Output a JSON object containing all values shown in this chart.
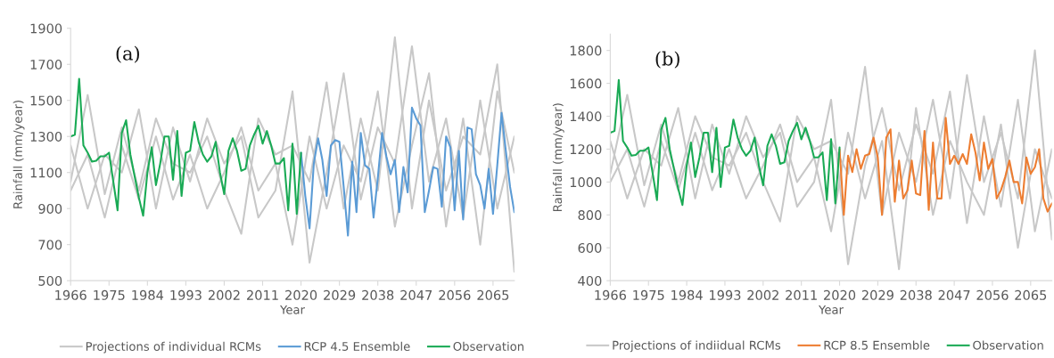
{
  "chart_data": [
    {
      "type": "line",
      "annotations": [
        "(a)"
      ],
      "xlabel": "Year",
      "ylabel": "Rainfall (mm/year)",
      "xlim": [
        1966,
        2070
      ],
      "xticks": [
        1966,
        1975,
        1984,
        1993,
        2002,
        2011,
        2020,
        2029,
        2038,
        2047,
        2056,
        2065
      ],
      "ylim": [
        500,
        1900
      ],
      "yticks": [
        500,
        700,
        900,
        1100,
        1300,
        1500,
        1700,
        1900
      ],
      "grid": false,
      "legend": "bottom",
      "series": [
        {
          "name": "Projections of individual RCMs",
          "color": "#c8c8c8",
          "x": [
            1966,
            1970,
            1974,
            1978,
            1982,
            1986,
            1990,
            1994,
            1998,
            2002,
            2006,
            2010,
            2014,
            2018,
            2022,
            2026,
            2030,
            2034,
            2038,
            2042,
            2046,
            2050,
            2054,
            2058,
            2062,
            2066,
            2070
          ],
          "values": [
            1050,
            1530,
            980,
            1350,
            1000,
            1400,
            1150,
            1100,
            1300,
            1000,
            760,
            1400,
            1200,
            1250,
            1050,
            1600,
            900,
            1400,
            1000,
            1850,
            900,
            1500,
            1000,
            1300,
            1200,
            1700,
            550
          ]
        },
        {
          "color": "#c8c8c8",
          "x": [
            1966,
            1970,
            1974,
            1978,
            1982,
            1986,
            1990,
            1994,
            1998,
            2002,
            2006,
            2010,
            2014,
            2018,
            2022,
            2026,
            2030,
            2034,
            2038,
            2042,
            2046,
            2050,
            2054,
            2058,
            2062,
            2066,
            2070
          ],
          "values": [
            1250,
            900,
            1200,
            1100,
            1450,
            900,
            1350,
            1050,
            1400,
            1150,
            1300,
            850,
            1000,
            1550,
            600,
            1100,
            1650,
            950,
            1350,
            1150,
            1800,
            1050,
            1400,
            850,
            1500,
            900,
            1300
          ]
        },
        {
          "color": "#c8c8c8",
          "x": [
            1966,
            1970,
            1974,
            1978,
            1982,
            1986,
            1990,
            1994,
            1998,
            2002,
            2006,
            2010,
            2014,
            2018,
            2022,
            2026,
            2030,
            2034,
            2038,
            2042,
            2046,
            2050,
            2054,
            2058,
            2062,
            2066,
            2070
          ],
          "values": [
            1000,
            1200,
            850,
            1250,
            950,
            1300,
            950,
            1200,
            900,
            1100,
            1350,
            1000,
            1150,
            700,
            1300,
            900,
            1250,
            1050,
            1550,
            800,
            1250,
            1650,
            800,
            1400,
            700,
            1550,
            1100
          ]
        },
        {
          "name": "RCP 4.5 Ensemble",
          "color": "#5b9bd5",
          "x": [
            2020,
            2021,
            2022,
            2023,
            2024,
            2025,
            2026,
            2027,
            2028,
            2029,
            2030,
            2031,
            2032,
            2033,
            2034,
            2035,
            2036,
            2037,
            2038,
            2039,
            2040,
            2041,
            2042,
            2043,
            2044,
            2045,
            2046,
            2047,
            2048,
            2049,
            2050,
            2051,
            2052,
            2053,
            2054,
            2055,
            2056,
            2057,
            2058,
            2059,
            2060,
            2061,
            2062,
            2063,
            2064,
            2065,
            2066,
            2067,
            2068,
            2069,
            2070
          ],
          "values": [
            1210,
            970,
            790,
            1150,
            1290,
            1170,
            970,
            1250,
            1280,
            1270,
            1020,
            750,
            1160,
            880,
            1320,
            1140,
            1120,
            850,
            1070,
            1320,
            1190,
            1090,
            1170,
            880,
            1130,
            990,
            1460,
            1400,
            1360,
            880,
            1000,
            1130,
            1120,
            910,
            1300,
            1240,
            890,
            1220,
            840,
            1350,
            1340,
            1090,
            1030,
            900,
            1120,
            870,
            1140,
            1430,
            1220,
            1020,
            880
          ]
        },
        {
          "name": "Observation",
          "color": "#1aaa55",
          "x": [
            1966,
            1967,
            1968,
            1969,
            1970,
            1971,
            1972,
            1973,
            1974,
            1975,
            1976,
            1977,
            1978,
            1979,
            1980,
            1981,
            1982,
            1983,
            1984,
            1985,
            1986,
            1987,
            1988,
            1989,
            1990,
            1991,
            1992,
            1993,
            1994,
            1995,
            1996,
            1997,
            1998,
            1999,
            2000,
            2001,
            2002,
            2003,
            2004,
            2005,
            2006,
            2007,
            2008,
            2009,
            2010,
            2011,
            2012,
            2013,
            2014,
            2015,
            2016,
            2017,
            2018,
            2019,
            2020
          ],
          "values": [
            1300,
            1310,
            1620,
            1250,
            1210,
            1160,
            1165,
            1190,
            1190,
            1210,
            1050,
            890,
            1320,
            1390,
            1200,
            1080,
            960,
            860,
            1100,
            1240,
            1030,
            1150,
            1300,
            1300,
            1060,
            1330,
            970,
            1210,
            1220,
            1380,
            1270,
            1200,
            1160,
            1190,
            1270,
            1100,
            980,
            1220,
            1290,
            1220,
            1110,
            1120,
            1250,
            1310,
            1360,
            1260,
            1330,
            1250,
            1150,
            1150,
            1180,
            890,
            1260,
            870,
            1210
          ]
        }
      ]
    },
    {
      "type": "line",
      "annotations": [
        "(b)"
      ],
      "xlabel": "Year",
      "ylabel": "Rainfall (mm/year)",
      "xlim": [
        1966,
        2070
      ],
      "xticks": [
        1966,
        1975,
        1984,
        1993,
        2002,
        2011,
        2020,
        2029,
        2038,
        2047,
        2056,
        2065
      ],
      "ylim": [
        400,
        1900
      ],
      "yticks": [
        400,
        600,
        800,
        1000,
        1200,
        1400,
        1600,
        1800
      ],
      "grid": false,
      "legend": "bottom",
      "series": [
        {
          "name": "Projections of indiidual RCMs",
          "color": "#c8c8c8",
          "x": [
            1966,
            1970,
            1974,
            1978,
            1982,
            1986,
            1990,
            1994,
            1998,
            2002,
            2006,
            2010,
            2014,
            2018,
            2022,
            2026,
            2030,
            2034,
            2038,
            2042,
            2046,
            2050,
            2054,
            2058,
            2062,
            2066,
            2070
          ],
          "values": [
            1050,
            1530,
            980,
            1350,
            1000,
            1400,
            1150,
            1100,
            1300,
            1000,
            760,
            1400,
            1200,
            1250,
            1050,
            1700,
            800,
            1300,
            1000,
            1500,
            900,
            1650,
            1000,
            1300,
            900,
            1800,
            650
          ]
        },
        {
          "color": "#c8c8c8",
          "x": [
            1966,
            1970,
            1974,
            1978,
            1982,
            1986,
            1990,
            1994,
            1998,
            2002,
            2006,
            2010,
            2014,
            2018,
            2022,
            2026,
            2030,
            2034,
            2038,
            2042,
            2046,
            2050,
            2054,
            2058,
            2062,
            2066,
            2070
          ],
          "values": [
            1250,
            900,
            1200,
            1100,
            1450,
            900,
            1350,
            1050,
            1400,
            1150,
            1300,
            850,
            1000,
            1500,
            500,
            1100,
            1450,
            950,
            1350,
            1050,
            1550,
            750,
            1400,
            850,
            1500,
            700,
            1200
          ]
        },
        {
          "color": "#c8c8c8",
          "x": [
            1966,
            1970,
            1974,
            1978,
            1982,
            1986,
            1990,
            1994,
            1998,
            2002,
            2006,
            2010,
            2014,
            2018,
            2022,
            2026,
            2030,
            2034,
            2038,
            2042,
            2046,
            2050,
            2054,
            2058,
            2062,
            2066,
            2070
          ],
          "values": [
            1000,
            1200,
            850,
            1250,
            950,
            1300,
            950,
            1200,
            900,
            1100,
            1350,
            1000,
            1150,
            700,
            1300,
            900,
            1250,
            470,
            1450,
            800,
            1250,
            1000,
            800,
            1350,
            600,
            1200,
            900
          ]
        },
        {
          "name": "RCP 8.5 Ensemble",
          "color": "#ed7d31",
          "x": [
            2020,
            2021,
            2022,
            2023,
            2024,
            2025,
            2026,
            2027,
            2028,
            2029,
            2030,
            2031,
            2032,
            2033,
            2034,
            2035,
            2036,
            2037,
            2038,
            2039,
            2040,
            2041,
            2042,
            2043,
            2044,
            2045,
            2046,
            2047,
            2048,
            2049,
            2050,
            2051,
            2052,
            2053,
            2054,
            2055,
            2056,
            2057,
            2058,
            2059,
            2060,
            2061,
            2062,
            2063,
            2064,
            2065,
            2066,
            2067,
            2068,
            2069,
            2070
          ],
          "values": [
            1200,
            800,
            1160,
            1060,
            1200,
            1080,
            1160,
            1170,
            1270,
            1150,
            800,
            1270,
            1320,
            880,
            1130,
            900,
            950,
            1130,
            930,
            920,
            1310,
            830,
            1240,
            900,
            900,
            1390,
            1110,
            1160,
            1110,
            1170,
            1110,
            1290,
            1180,
            1010,
            1240,
            1080,
            1140,
            900,
            950,
            1030,
            1130,
            1000,
            1000,
            870,
            1150,
            1050,
            1090,
            1200,
            900,
            820,
            870
          ]
        },
        {
          "name": "Observation",
          "color": "#1aaa55",
          "x": [
            1966,
            1967,
            1968,
            1969,
            1970,
            1971,
            1972,
            1973,
            1974,
            1975,
            1976,
            1977,
            1978,
            1979,
            1980,
            1981,
            1982,
            1983,
            1984,
            1985,
            1986,
            1987,
            1988,
            1989,
            1990,
            1991,
            1992,
            1993,
            1994,
            1995,
            1996,
            1997,
            1998,
            1999,
            2000,
            2001,
            2002,
            2003,
            2004,
            2005,
            2006,
            2007,
            2008,
            2009,
            2010,
            2011,
            2012,
            2013,
            2014,
            2015,
            2016,
            2017,
            2018,
            2019,
            2020
          ],
          "values": [
            1300,
            1310,
            1620,
            1250,
            1210,
            1160,
            1165,
            1190,
            1190,
            1210,
            1050,
            890,
            1320,
            1390,
            1200,
            1080,
            960,
            860,
            1100,
            1240,
            1030,
            1150,
            1300,
            1300,
            1060,
            1330,
            970,
            1210,
            1220,
            1380,
            1270,
            1200,
            1160,
            1190,
            1270,
            1100,
            980,
            1220,
            1290,
            1220,
            1110,
            1120,
            1250,
            1310,
            1360,
            1260,
            1330,
            1250,
            1150,
            1150,
            1180,
            890,
            1260,
            870,
            1210
          ]
        }
      ]
    }
  ]
}
